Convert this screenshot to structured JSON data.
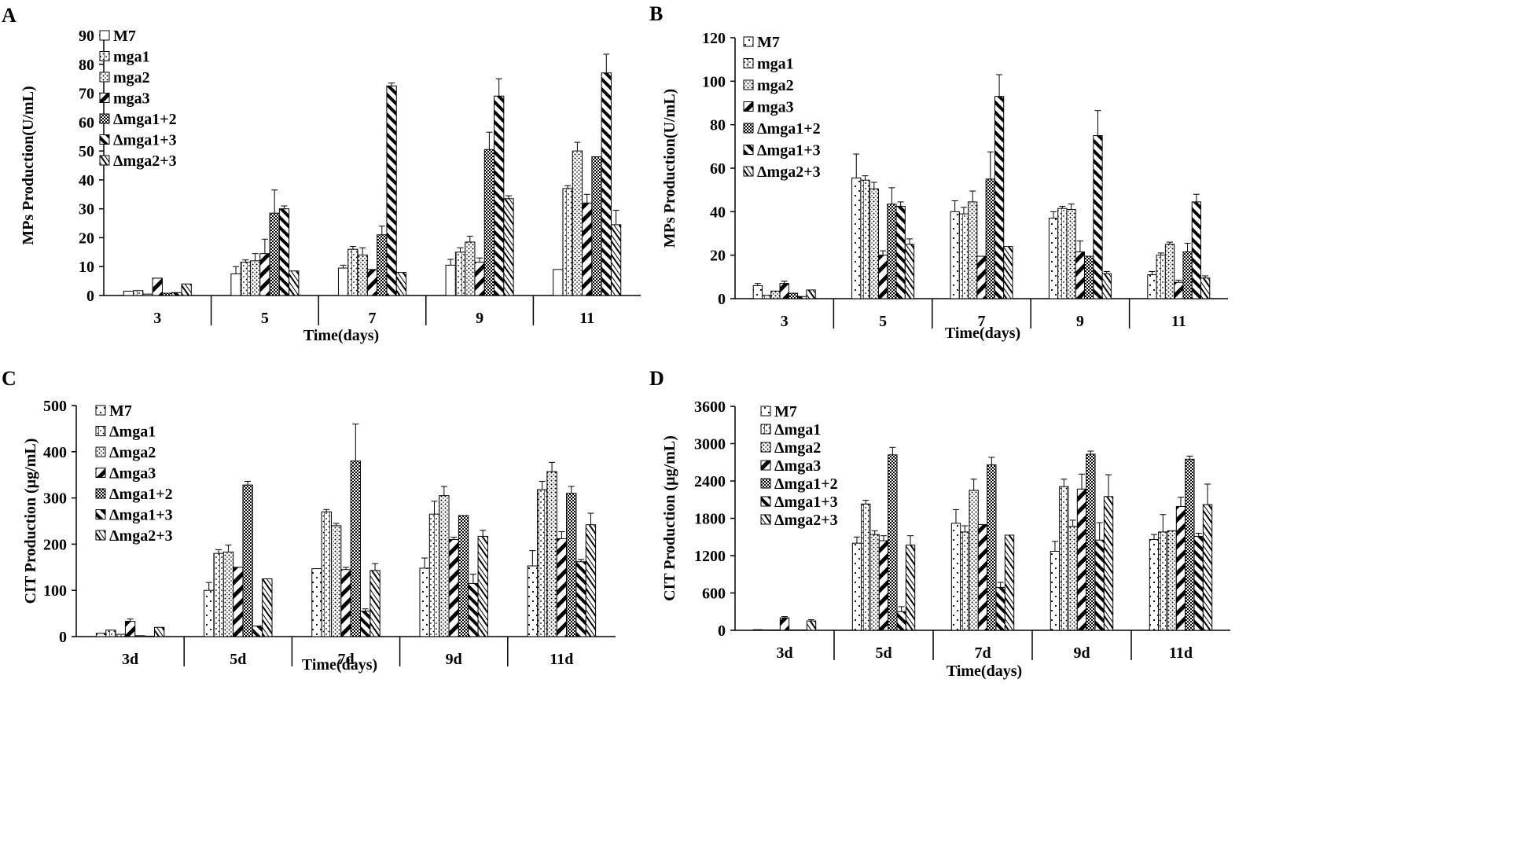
{
  "chart_data": [
    {
      "type": "bar",
      "panel_label": "A",
      "ylabel": "MPs Production(U/mL)",
      "xlabel": "Time(days)",
      "ylim": [
        0,
        90
      ],
      "yticks": [
        "0",
        "10",
        "20",
        "30",
        "40",
        "50",
        "60",
        "70",
        "80",
        "90"
      ],
      "categories": [
        "3",
        "5",
        "7",
        "9",
        "11"
      ],
      "series": [
        {
          "name": "M7",
          "pattern": "white",
          "values": [
            1.5,
            7.5,
            9.5,
            10.5,
            9
          ],
          "errors": [
            0,
            2.5,
            1,
            2,
            0
          ]
        },
        {
          "name": "mga1",
          "pattern": "vline",
          "values": [
            1.7,
            11.5,
            16,
            15,
            37
          ],
          "errors": [
            0,
            0.8,
            1,
            1.5,
            1
          ]
        },
        {
          "name": "mga2",
          "pattern": "dots",
          "values": [
            0.5,
            12,
            14,
            18.5,
            50
          ],
          "errors": [
            0,
            2.5,
            2.5,
            2,
            3
          ]
        },
        {
          "name": "mga3",
          "pattern": "bold-diag",
          "values": [
            6,
            14.5,
            9,
            11.5,
            32
          ],
          "errors": [
            0,
            5,
            0,
            1.5,
            3
          ]
        },
        {
          "name": "Δmga1+2",
          "pattern": "checker",
          "values": [
            0.8,
            28.5,
            21,
            50.5,
            48
          ],
          "errors": [
            0,
            8,
            3,
            6,
            0
          ]
        },
        {
          "name": "Δmga1+3",
          "pattern": "bold-back",
          "values": [
            1,
            30,
            72.5,
            69,
            77
          ],
          "errors": [
            0,
            1,
            1,
            6,
            6.5
          ]
        },
        {
          "name": "Δmga2+3",
          "pattern": "wave",
          "values": [
            4,
            8.5,
            8,
            33.5,
            24.5
          ],
          "errors": [
            0,
            0,
            0,
            1,
            5
          ]
        }
      ]
    },
    {
      "type": "bar",
      "panel_label": "B",
      "ylabel": "MPs Production(U/mL)",
      "xlabel": "Time(days)",
      "ylim": [
        0,
        120
      ],
      "yticks": [
        "0",
        "20",
        "40",
        "60",
        "80",
        "100",
        "120"
      ],
      "categories": [
        "3",
        "5",
        "7",
        "9",
        "11"
      ],
      "series": [
        {
          "name": "M7",
          "pattern": "dots-sparse",
          "values": [
            6,
            55.5,
            40,
            37,
            11
          ],
          "errors": [
            1,
            11,
            5,
            3,
            1.5
          ]
        },
        {
          "name": "mga1",
          "pattern": "vline",
          "values": [
            1.5,
            54.5,
            39,
            41.5,
            20
          ],
          "errors": [
            0,
            2,
            3,
            1,
            1
          ]
        },
        {
          "name": "mga2",
          "pattern": "dots",
          "values": [
            3.5,
            50.5,
            44.5,
            41,
            25
          ],
          "errors": [
            0,
            3,
            5,
            2.5,
            1
          ]
        },
        {
          "name": "mga3",
          "pattern": "bold-diag",
          "values": [
            7,
            20,
            19.5,
            21.5,
            7.5
          ],
          "errors": [
            1,
            2,
            0,
            5,
            1
          ]
        },
        {
          "name": "Δmga1+2",
          "pattern": "checker",
          "values": [
            2.5,
            43.5,
            55,
            19.5,
            21.5
          ],
          "errors": [
            0,
            7.5,
            12.5,
            0,
            4
          ]
        },
        {
          "name": "Δmga1+3",
          "pattern": "bold-back",
          "values": [
            1,
            42.5,
            93,
            75,
            44.5
          ],
          "errors": [
            0,
            2,
            10,
            11.5,
            3.5
          ]
        },
        {
          "name": "Δmga2+3",
          "pattern": "wave",
          "values": [
            4,
            25,
            24,
            11.5,
            9.5
          ],
          "errors": [
            0,
            2.5,
            0,
            1,
            1
          ]
        }
      ]
    },
    {
      "type": "bar",
      "panel_label": "C",
      "ylabel": "CIT Production (µg/mL)",
      "xlabel": "Time(days)",
      "ylim": [
        0,
        500
      ],
      "yticks": [
        "0",
        "100",
        "200",
        "300",
        "400",
        "500"
      ],
      "categories": [
        "3d",
        "5d",
        "7d",
        "9d",
        "11d"
      ],
      "series": [
        {
          "name": "M7",
          "pattern": "dots-sparse",
          "values": [
            7,
            100,
            147,
            148,
            153
          ],
          "errors": [
            0,
            17,
            0,
            22,
            33
          ]
        },
        {
          "name": "Δmga1",
          "pattern": "vline",
          "values": [
            14,
            180,
            270,
            265,
            318
          ],
          "errors": [
            0,
            8,
            5,
            28,
            18
          ]
        },
        {
          "name": "Δmga2",
          "pattern": "dots",
          "values": [
            5,
            183,
            240,
            305,
            357
          ],
          "errors": [
            0,
            15,
            5,
            20,
            20
          ]
        },
        {
          "name": "Δmga3",
          "pattern": "bold-diag",
          "values": [
            33,
            150,
            145,
            210,
            212
          ],
          "errors": [
            5,
            0,
            5,
            5,
            15
          ]
        },
        {
          "name": "Δmga1+2",
          "pattern": "checker",
          "values": [
            2,
            328,
            380,
            262,
            310
          ],
          "errors": [
            0,
            8,
            80,
            0,
            15
          ]
        },
        {
          "name": "Δmga1+3",
          "pattern": "bold-back",
          "values": [
            1,
            23,
            55,
            115,
            162
          ],
          "errors": [
            0,
            0,
            5,
            20,
            5
          ]
        },
        {
          "name": "Δmga2+3",
          "pattern": "wave",
          "values": [
            20,
            125,
            143,
            217,
            242
          ],
          "errors": [
            0,
            0,
            15,
            13,
            25
          ]
        }
      ]
    },
    {
      "type": "bar",
      "panel_label": "D",
      "ylabel": "CIT Production (µg/mL)",
      "xlabel": "Time(days)",
      "ylim": [
        0,
        3600
      ],
      "yticks": [
        "0",
        "600",
        "1200",
        "1800",
        "2400",
        "3000",
        "3600"
      ],
      "categories": [
        "3d",
        "5d",
        "7d",
        "9d",
        "11d"
      ],
      "series": [
        {
          "name": "M7",
          "pattern": "dots-sparse",
          "values": [
            10,
            1400,
            1720,
            1270,
            1460
          ],
          "errors": [
            0,
            100,
            220,
            160,
            80
          ]
        },
        {
          "name": "Δmga1",
          "pattern": "vline",
          "values": [
            5,
            2030,
            1580,
            2310,
            1580
          ],
          "errors": [
            0,
            60,
            100,
            120,
            280
          ]
        },
        {
          "name": "Δmga2",
          "pattern": "dots",
          "values": [
            5,
            1540,
            2250,
            1670,
            1600
          ],
          "errors": [
            0,
            60,
            180,
            100,
            0
          ]
        },
        {
          "name": "Δmga3",
          "pattern": "bold-diag",
          "values": [
            200,
            1440,
            1700,
            2270,
            1990
          ],
          "errors": [
            20,
            80,
            0,
            240,
            150
          ]
        },
        {
          "name": "Δmga1+2",
          "pattern": "checker",
          "values": [
            5,
            2820,
            2660,
            2830,
            2750
          ],
          "errors": [
            0,
            120,
            120,
            50,
            50
          ]
        },
        {
          "name": "Δmga1+3",
          "pattern": "bold-back",
          "values": [
            5,
            300,
            690,
            1450,
            1510
          ],
          "errors": [
            0,
            80,
            80,
            280,
            50
          ]
        },
        {
          "name": "Δmga2+3",
          "pattern": "wave",
          "values": [
            150,
            1370,
            1530,
            2150,
            2020
          ],
          "errors": [
            20,
            150,
            0,
            350,
            330
          ]
        }
      ]
    }
  ]
}
